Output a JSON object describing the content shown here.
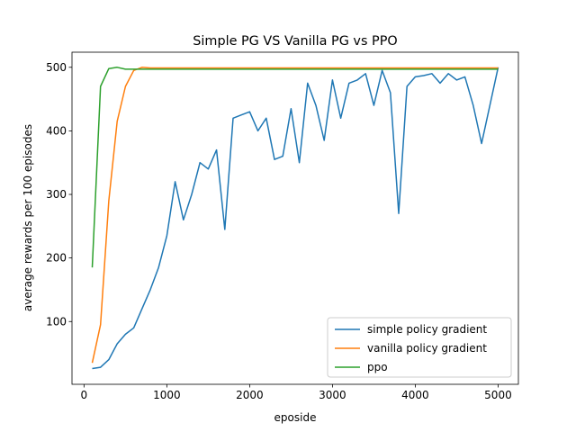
{
  "chart_data": {
    "type": "line",
    "title": "Simple PG VS Vanilla PG vs PPO",
    "x_label": "eposide",
    "y_label": "average rewards per 100 episodes",
    "x": [
      100,
      200,
      300,
      400,
      500,
      600,
      700,
      800,
      900,
      1000,
      1100,
      1200,
      1300,
      1400,
      1500,
      1600,
      1700,
      1800,
      1900,
      2000,
      2100,
      2200,
      2300,
      2400,
      2500,
      2600,
      2700,
      2800,
      2900,
      3000,
      3100,
      3200,
      3300,
      3400,
      3500,
      3600,
      3700,
      3800,
      3900,
      4000,
      4100,
      4200,
      4300,
      4400,
      4500,
      4600,
      4700,
      4800,
      4900,
      5000
    ],
    "series": [
      {
        "name": "simple policy gradient",
        "color": "#1f77b4",
        "values": [
          26,
          28,
          40,
          65,
          80,
          90,
          120,
          150,
          185,
          235,
          320,
          260,
          300,
          350,
          340,
          370,
          245,
          420,
          425,
          430,
          400,
          420,
          355,
          360,
          435,
          350,
          475,
          440,
          385,
          480,
          420,
          475,
          480,
          490,
          440,
          495,
          460,
          270,
          470,
          485,
          487,
          490,
          475,
          490,
          480,
          485,
          440,
          380,
          440,
          500
        ]
      },
      {
        "name": "vanilla policy gradient",
        "color": "#ff7f0e",
        "values": [
          35,
          95,
          290,
          415,
          470,
          495,
          500,
          499,
          499,
          499,
          499,
          499,
          499,
          499,
          499,
          499,
          499,
          499,
          499,
          499,
          499,
          499,
          499,
          499,
          499,
          499,
          499,
          499,
          499,
          499,
          499,
          499,
          499,
          499,
          499,
          499,
          499,
          499,
          499,
          499,
          499,
          499,
          499,
          499,
          499,
          499,
          499,
          499,
          499,
          499
        ]
      },
      {
        "name": "ppo",
        "color": "#2ca02c",
        "values": [
          185,
          470,
          498,
          500,
          497,
          497,
          497,
          497,
          497,
          497,
          497,
          497,
          497,
          497,
          497,
          497,
          497,
          497,
          497,
          497,
          497,
          497,
          497,
          497,
          497,
          497,
          497,
          497,
          497,
          497,
          497,
          497,
          497,
          497,
          497,
          497,
          497,
          497,
          497,
          497,
          497,
          497,
          497,
          497,
          497,
          497,
          497,
          497,
          497,
          497
        ]
      }
    ],
    "xlim": [
      -145,
      5245
    ],
    "ylim": [
      1.25,
      523.75
    ],
    "xticks": [
      0,
      1000,
      2000,
      3000,
      4000,
      5000
    ],
    "yticks": [
      100,
      200,
      300,
      400,
      500
    ],
    "legend": "lower right"
  }
}
